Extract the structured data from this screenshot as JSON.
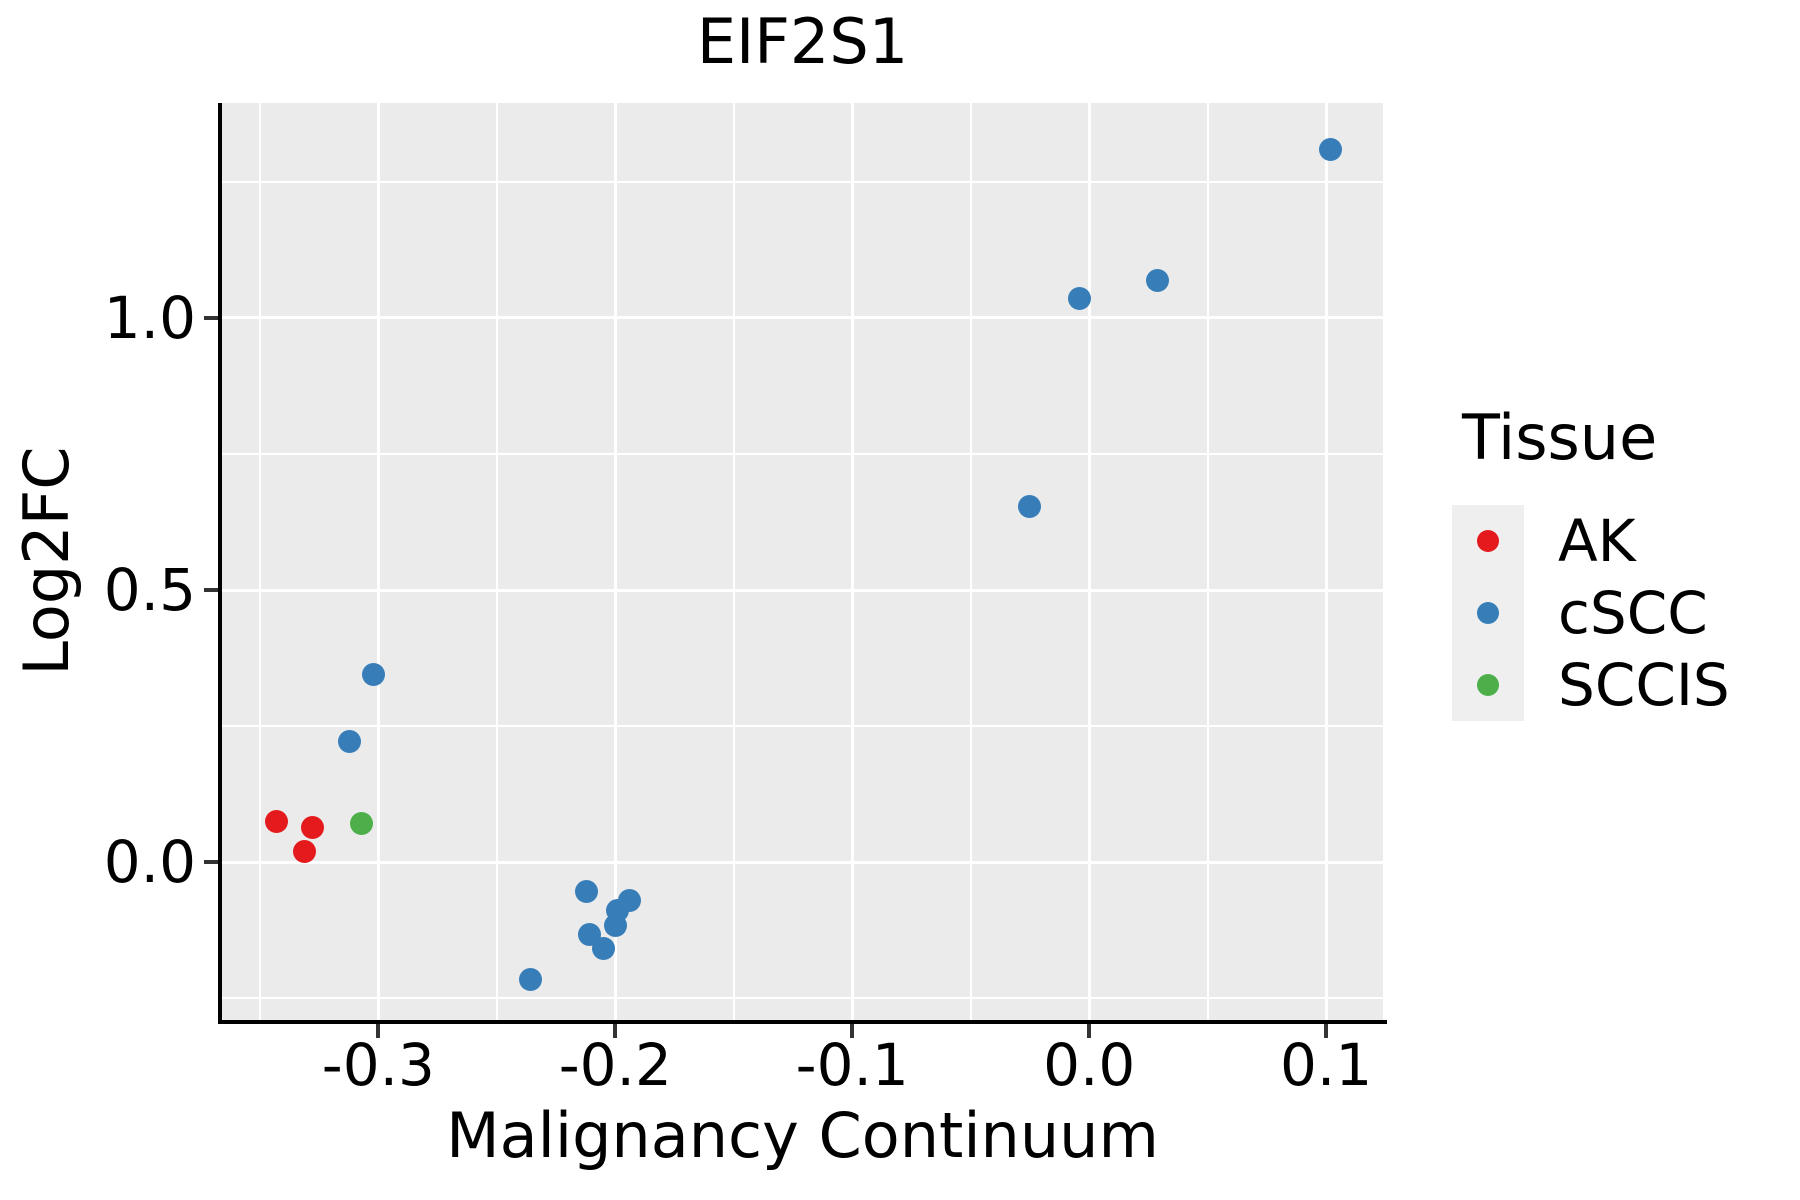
{
  "chart_data": {
    "type": "scatter",
    "title": "EIF2S1",
    "xlabel": "Malignancy Continuum",
    "ylabel": "Log2FC",
    "legend_title": "Tissue",
    "legend_position": "right",
    "grid": "major-and-minor-white-on-gray",
    "xlim": [
      -0.366,
      0.124
    ],
    "ylim": [
      -0.29,
      1.395
    ],
    "x_ticks": [
      -0.3,
      -0.2,
      -0.1,
      0.0,
      0.1
    ],
    "x_tick_labels": [
      "-0.3",
      "-0.2",
      "-0.1",
      "0.0",
      "0.1"
    ],
    "x_minor_ticks": [
      -0.35,
      -0.25,
      -0.15,
      -0.05,
      0.05
    ],
    "y_ticks": [
      0.0,
      0.5,
      1.0
    ],
    "y_tick_labels": [
      "0.0",
      "0.5",
      "1.0"
    ],
    "y_minor_ticks": [
      -0.25,
      0.25,
      0.75,
      1.25
    ],
    "series": [
      {
        "name": "AK",
        "color": "#e41a1c",
        "points": [
          [
            -0.343,
            0.075
          ],
          [
            -0.328,
            0.064
          ],
          [
            -0.331,
            0.019
          ]
        ]
      },
      {
        "name": "cSCC",
        "color": "#377eb8",
        "points": [
          [
            0.102,
            1.31
          ],
          [
            0.029,
            1.068
          ],
          [
            -0.004,
            1.035
          ],
          [
            -0.025,
            0.654
          ],
          [
            -0.302,
            0.345
          ],
          [
            -0.312,
            0.222
          ],
          [
            -0.212,
            -0.053
          ],
          [
            -0.194,
            -0.07
          ],
          [
            -0.199,
            -0.088
          ],
          [
            -0.2,
            -0.116
          ],
          [
            -0.211,
            -0.132
          ],
          [
            -0.205,
            -0.158
          ],
          [
            -0.236,
            -0.215
          ]
        ]
      },
      {
        "name": "SCCIS",
        "color": "#4daf4a",
        "points": [
          [
            -0.307,
            0.071
          ]
        ]
      }
    ]
  },
  "style": {
    "panel_bg": "#ebebeb",
    "grid_color": "#ffffff",
    "axis_line_color": "#000000",
    "tick_mark_color": "#333333",
    "text_color": "#000000",
    "legend_key_bg": "#efefef",
    "series_colors": {
      "AK": "#e41a1c",
      "cSCC": "#377eb8",
      "SCCIS": "#4daf4a"
    }
  }
}
